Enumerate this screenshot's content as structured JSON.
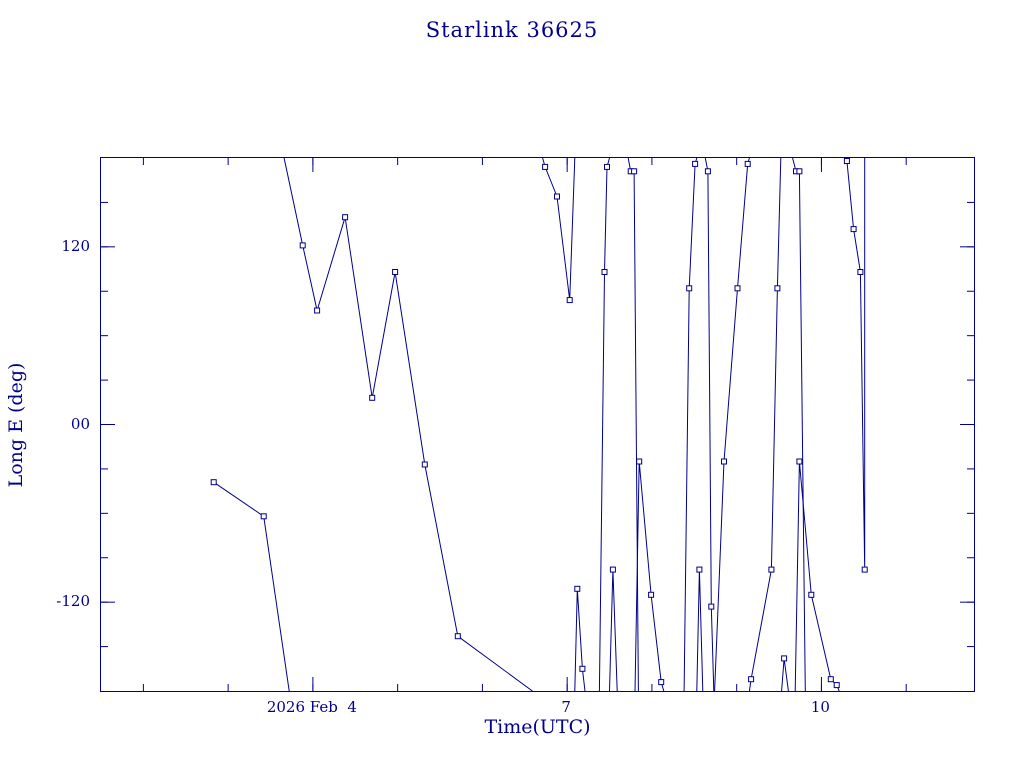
{
  "chart_data": {
    "type": "line",
    "title": "Starlink 36625",
    "xlabel": "Time(UTC)",
    "ylabel": "Long E (deg)",
    "x_axis_units": "days of 2026 February (UTC)",
    "xlim": [
      1.5,
      11.8
    ],
    "ylim": [
      -180,
      180
    ],
    "grid": false,
    "legend": "none",
    "line_color": "#00008B",
    "marker": "open-square",
    "x_ticks_major": [
      {
        "value": 4,
        "label": "2026 Feb  4"
      },
      {
        "value": 7,
        "label": "7"
      },
      {
        "value": 10,
        "label": "10"
      }
    ],
    "x_ticks_minor": [
      2,
      3,
      4,
      5,
      6,
      7,
      8,
      9,
      10,
      11
    ],
    "y_ticks_major": [
      {
        "value": 120,
        "label": "120"
      },
      {
        "value": 0,
        "label": "00"
      },
      {
        "value": -120,
        "label": "-120"
      }
    ],
    "y_ticks_minor": [
      -150,
      -120,
      -90,
      -60,
      -30,
      0,
      30,
      60,
      90,
      120,
      150
    ],
    "segments": [
      [
        [
          2.83,
          -39
        ],
        [
          3.42,
          -62
        ],
        [
          3.72,
          -180
        ]
      ],
      [
        [
          3.66,
          180
        ],
        [
          3.88,
          121
        ],
        [
          4.05,
          77
        ],
        [
          4.38,
          140
        ],
        [
          4.7,
          18
        ],
        [
          4.97,
          103
        ],
        [
          5.32,
          -27
        ],
        [
          5.71,
          -143
        ],
        [
          6.59,
          -180
        ]
      ],
      [
        [
          6.71,
          180
        ],
        [
          6.74,
          174
        ],
        [
          6.88,
          154
        ],
        [
          7.03,
          84
        ],
        [
          7.09,
          180
        ]
      ],
      [
        [
          7.09,
          -180
        ],
        [
          7.12,
          -111
        ],
        [
          7.18,
          -165
        ],
        [
          7.21,
          -180
        ]
      ],
      [
        [
          7.38,
          -180
        ],
        [
          7.44,
          103
        ],
        [
          7.47,
          174
        ],
        [
          7.5,
          180
        ]
      ],
      [
        [
          7.5,
          -180
        ],
        [
          7.54,
          -98
        ],
        [
          7.59,
          -180
        ]
      ],
      [
        [
          7.72,
          180
        ],
        [
          7.75,
          171
        ],
        [
          7.79,
          171
        ],
        [
          7.84,
          -180
        ]
      ],
      [
        [
          7.8,
          -180
        ],
        [
          7.85,
          -25
        ],
        [
          7.99,
          -115
        ],
        [
          8.11,
          -174
        ],
        [
          8.14,
          -180
        ]
      ],
      [
        [
          8.38,
          -180
        ],
        [
          8.44,
          92
        ],
        [
          8.51,
          176
        ],
        [
          8.53,
          180
        ]
      ],
      [
        [
          8.53,
          -180
        ],
        [
          8.56,
          -98
        ],
        [
          8.6,
          -180
        ]
      ],
      [
        [
          8.63,
          180
        ],
        [
          8.66,
          171
        ],
        [
          8.7,
          -123
        ],
        [
          8.73,
          -180
        ]
      ],
      [
        [
          8.74,
          -180
        ],
        [
          8.85,
          -25
        ],
        [
          9.01,
          92
        ],
        [
          9.13,
          176
        ],
        [
          9.15,
          180
        ]
      ],
      [
        [
          9.15,
          -180
        ],
        [
          9.17,
          -172
        ],
        [
          9.41,
          -98
        ],
        [
          9.48,
          92
        ],
        [
          9.52,
          180
        ]
      ],
      [
        [
          9.53,
          -180
        ],
        [
          9.56,
          -158
        ],
        [
          9.61,
          -180
        ]
      ],
      [
        [
          9.66,
          180
        ],
        [
          9.7,
          171
        ],
        [
          9.74,
          171
        ],
        [
          9.81,
          -180
        ]
      ],
      [
        [
          9.69,
          -180
        ],
        [
          9.74,
          -25
        ],
        [
          9.88,
          -115
        ],
        [
          10.11,
          -172
        ],
        [
          10.18,
          -176
        ],
        [
          10.21,
          -180
        ]
      ],
      [
        [
          10.27,
          180
        ],
        [
          10.3,
          178
        ],
        [
          10.38,
          132
        ],
        [
          10.46,
          103
        ],
        [
          10.51,
          -98
        ],
        [
          10.51,
          180
        ]
      ]
    ]
  }
}
